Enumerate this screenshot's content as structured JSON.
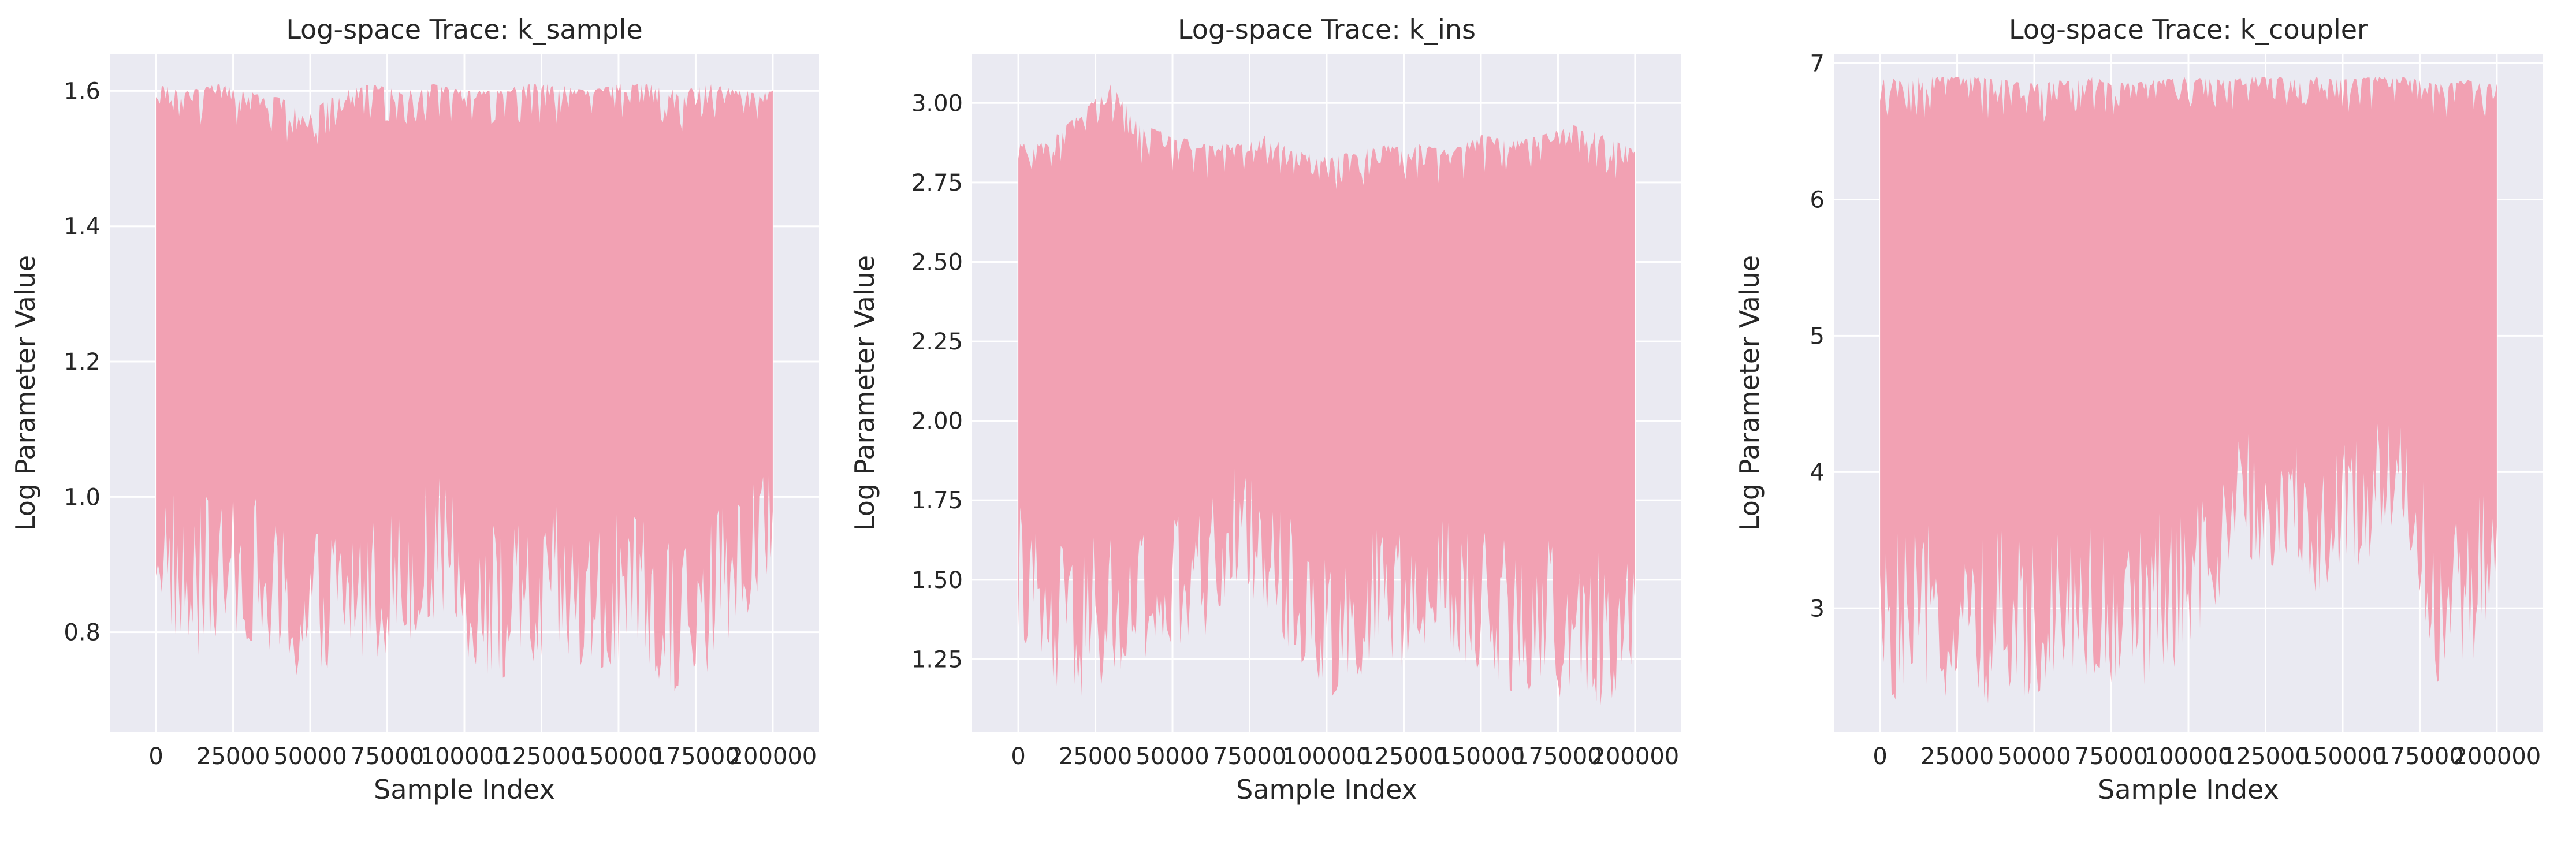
{
  "figure": {
    "background": "#ffffff"
  },
  "style": {
    "plot_background": "#eaeaf2",
    "grid_color": "#ffffff",
    "trace_color": "#f0a1b3"
  },
  "chart_data": [
    {
      "type": "line",
      "title": "Log-space Trace: k_sample",
      "xlabel": "Sample Index",
      "ylabel": "Log Parameter Value",
      "xlim": [
        -15000,
        215000
      ],
      "ylim": [
        0.652,
        1.655
      ],
      "x_ticks": [
        0,
        25000,
        50000,
        75000,
        100000,
        125000,
        150000,
        175000,
        200000
      ],
      "x_tick_labels": [
        "0",
        "25000",
        "50000",
        "75000",
        "100000",
        "125000",
        "150000",
        "175000",
        "200000"
      ],
      "y_ticks": [
        0.8,
        1.0,
        1.2,
        1.4,
        1.6
      ],
      "y_tick_labels": [
        "0.8",
        "1.0",
        "1.2",
        "1.4",
        "1.6"
      ],
      "grid": true,
      "series": [
        {
          "x": [
            0,
            10000,
            20000,
            30000,
            40000,
            50000,
            60000,
            70000,
            80000,
            90000,
            100000,
            110000,
            120000,
            130000,
            140000,
            150000,
            160000,
            170000,
            180000,
            190000,
            200000
          ],
          "y_max": [
            1.61,
            1.6,
            1.61,
            1.6,
            1.59,
            1.57,
            1.6,
            1.61,
            1.6,
            1.61,
            1.6,
            1.6,
            1.61,
            1.61,
            1.6,
            1.61,
            1.61,
            1.6,
            1.61,
            1.6,
            1.6
          ],
          "y_min": [
            0.86,
            0.75,
            0.78,
            0.79,
            0.73,
            0.72,
            0.76,
            0.76,
            0.78,
            0.82,
            0.76,
            0.73,
            0.72,
            0.75,
            0.72,
            0.74,
            0.71,
            0.71,
            0.74,
            0.82,
            0.86
          ]
        }
      ]
    },
    {
      "type": "line",
      "title": "Log-space Trace: k_ins",
      "xlabel": "Sample Index",
      "ylabel": "Log Parameter Value",
      "xlim": [
        -15000,
        215000
      ],
      "ylim": [
        1.02,
        3.155
      ],
      "x_ticks": [
        0,
        25000,
        50000,
        75000,
        100000,
        125000,
        150000,
        175000,
        200000
      ],
      "x_tick_labels": [
        "0",
        "25000",
        "50000",
        "75000",
        "100000",
        "125000",
        "150000",
        "175000",
        "200000"
      ],
      "y_ticks": [
        1.25,
        1.5,
        1.75,
        2.0,
        2.25,
        2.5,
        2.75,
        3.0
      ],
      "y_tick_labels": [
        "1.25",
        "1.50",
        "1.75",
        "2.00",
        "2.25",
        "2.50",
        "2.75",
        "3.00"
      ],
      "grid": true,
      "series": [
        {
          "x": [
            0,
            10000,
            20000,
            30000,
            40000,
            50000,
            60000,
            70000,
            80000,
            90000,
            100000,
            110000,
            120000,
            130000,
            140000,
            150000,
            160000,
            170000,
            180000,
            190000,
            200000
          ],
          "y_max": [
            2.87,
            2.88,
            2.97,
            3.06,
            2.93,
            2.9,
            2.87,
            2.87,
            2.9,
            2.85,
            2.83,
            2.85,
            2.87,
            2.87,
            2.85,
            2.9,
            2.88,
            2.9,
            2.93,
            2.9,
            2.85
          ],
          "y_min": [
            1.35,
            1.12,
            1.12,
            1.15,
            1.2,
            1.25,
            1.3,
            1.5,
            1.4,
            1.25,
            1.12,
            1.2,
            1.22,
            1.2,
            1.25,
            1.18,
            1.15,
            1.15,
            1.1,
            1.1,
            1.12
          ]
        }
      ]
    },
    {
      "type": "line",
      "title": "Log-space Trace: k_coupler",
      "xlabel": "Sample Index",
      "ylabel": "Log Parameter Value",
      "xlim": [
        -15000,
        215000
      ],
      "ylim": [
        2.09,
        7.07
      ],
      "x_ticks": [
        0,
        25000,
        50000,
        75000,
        100000,
        125000,
        150000,
        175000,
        200000
      ],
      "x_tick_labels": [
        "0",
        "25000",
        "50000",
        "75000",
        "100000",
        "125000",
        "150000",
        "175000",
        "200000"
      ],
      "y_ticks": [
        3,
        4,
        5,
        6,
        7
      ],
      "y_tick_labels": [
        "3",
        "4",
        "5",
        "6",
        "7"
      ],
      "grid": true,
      "series": [
        {
          "x": [
            0,
            10000,
            20000,
            30000,
            40000,
            50000,
            60000,
            70000,
            80000,
            90000,
            100000,
            110000,
            120000,
            130000,
            140000,
            150000,
            160000,
            170000,
            180000,
            190000,
            200000
          ],
          "y_max": [
            6.88,
            6.9,
            6.9,
            6.9,
            6.88,
            6.85,
            6.88,
            6.9,
            6.85,
            6.88,
            6.9,
            6.88,
            6.9,
            6.9,
            6.9,
            6.88,
            6.9,
            6.9,
            6.85,
            6.88,
            6.85
          ],
          "y_min": [
            2.3,
            2.35,
            2.35,
            2.3,
            2.3,
            2.35,
            2.6,
            2.45,
            2.4,
            2.45,
            2.6,
            3.0,
            3.3,
            3.3,
            3.1,
            3.2,
            3.4,
            3.6,
            2.45,
            2.5,
            2.9
          ]
        }
      ]
    }
  ]
}
